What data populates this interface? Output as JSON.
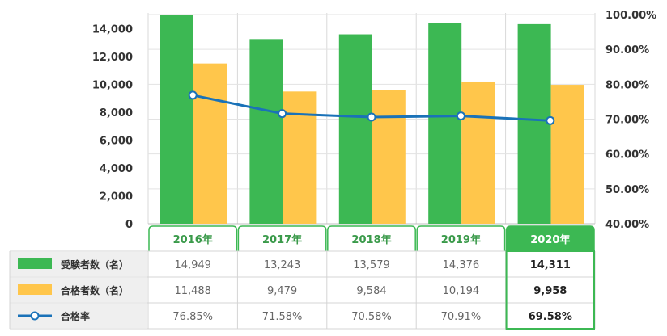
{
  "chart_data": {
    "type": "bar",
    "categories": [
      "2016年",
      "2017年",
      "2018年",
      "2019年",
      "2020年"
    ],
    "highlight_category": "2020年",
    "series": [
      {
        "name": "受験者数（名）",
        "kind": "bar",
        "axis": "left",
        "color": "#3cb853",
        "values": [
          14949,
          13243,
          13579,
          14376,
          14311
        ],
        "labels": [
          "14,949",
          "13,243",
          "13,579",
          "14,376",
          "14,311"
        ]
      },
      {
        "name": "合格者数（名）",
        "kind": "bar",
        "axis": "left",
        "color": "#ffc64b",
        "values": [
          11488,
          9479,
          9584,
          10194,
          9958
        ],
        "labels": [
          "11,488",
          "9,479",
          "9,584",
          "10,194",
          "9,958"
        ]
      },
      {
        "name": "合格率",
        "kind": "line",
        "axis": "right",
        "color": "#1a72b8",
        "values": [
          76.85,
          71.58,
          70.58,
          70.91,
          69.58
        ],
        "labels": [
          "76.85%",
          "71.58%",
          "70.58%",
          "70.91%",
          "69.58%"
        ]
      }
    ],
    "left_axis": {
      "min": 0,
      "max": 15000,
      "ticks": [
        0,
        2000,
        4000,
        6000,
        8000,
        10000,
        12000,
        14000
      ],
      "tick_labels": [
        "0",
        "2,000",
        "4,000",
        "6,000",
        "8,000",
        "10,000",
        "12,000",
        "14,000"
      ]
    },
    "right_axis": {
      "min": 40,
      "max": 100,
      "ticks": [
        40,
        50,
        60,
        70,
        80,
        90,
        100
      ],
      "tick_labels": [
        "40.00%",
        "50.00%",
        "60.00%",
        "70.00%",
        "80.00%",
        "90.00%",
        "100.00%"
      ]
    },
    "grid": true,
    "legend": "table-below"
  }
}
